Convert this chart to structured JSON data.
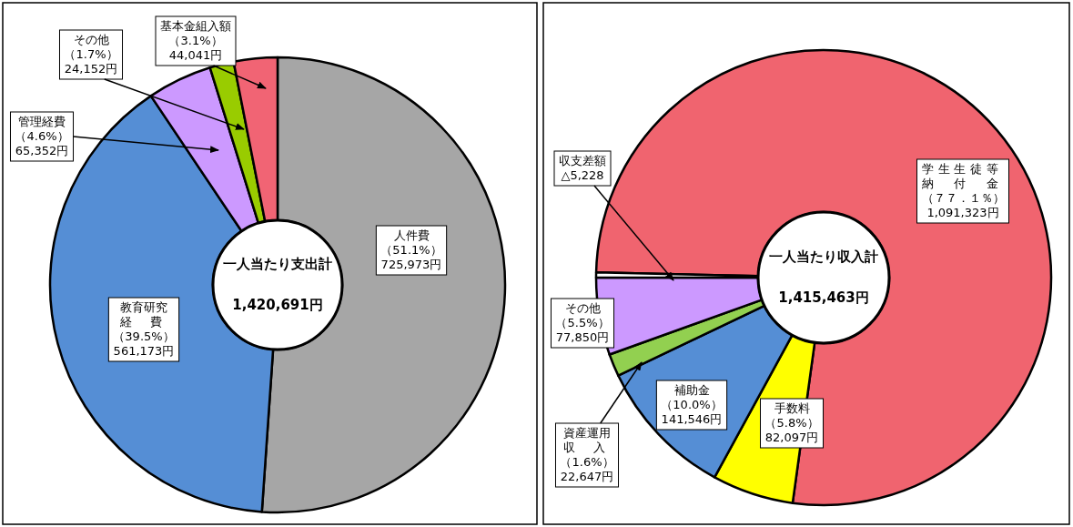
{
  "chart_data": [
    {
      "type": "donut",
      "title": "一人当たり支出計",
      "annotations": [
        "1,420,691円"
      ],
      "categories": [
        "人件費",
        "教育研究経費",
        "管理経費",
        "その他",
        "基本金組入額"
      ],
      "values": [
        725973,
        561173,
        65352,
        24152,
        44041
      ],
      "colors": [
        "#a6a6a6",
        "#558ed5",
        "#cc99ff",
        "#99cc00",
        "#f16474"
      ],
      "value_labels": [
        "（51.1%）\n725,973円",
        "（39.5%）\n561,173円",
        "（4.6%）\n65,352円",
        "（1.7%）\n24,152円",
        "（3.1%）\n44,041円"
      ]
    },
    {
      "type": "donut",
      "title": "一人当たり収入計",
      "annotations": [
        "1,415,463円"
      ],
      "categories": [
        "学生生徒等納付金",
        "手数料",
        "補助金",
        "資産運用収入",
        "その他",
        "収支差額"
      ],
      "values": [
        1091323,
        82097,
        141546,
        22647,
        77850,
        5228
      ],
      "colors": [
        "#f0646f",
        "#ffff00",
        "#558ed5",
        "#92d050",
        "#cc99ff",
        "#ffffff"
      ],
      "value_labels": [
        "（７７．１％）\n1,091,323円",
        "（5.8%）\n82,097円",
        "（10.0%）\n141,546円",
        "（1.6%）\n22,647円",
        "（5.5%）\n77,850円",
        "△5,228"
      ]
    }
  ]
}
